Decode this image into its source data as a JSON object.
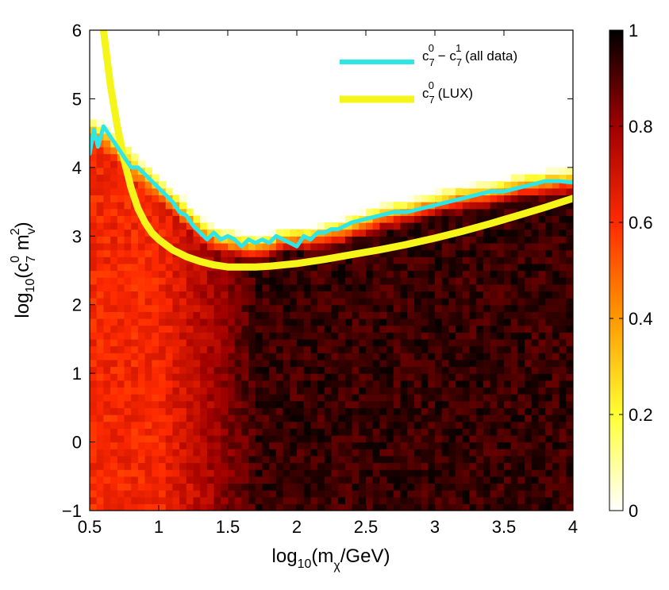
{
  "chart_data": {
    "type": "heatmap",
    "title": "",
    "xlabel": {
      "prefix": "log",
      "sub": "10",
      "open": "(m",
      "sub2": "χ",
      "close": "/GeV)"
    },
    "ylabel": {
      "prefix": "log",
      "sub": "10",
      "open": "(c",
      "sub2": "7",
      "sup2": "0",
      "mid": " m",
      "sub3": "v",
      "sup3": "2",
      "close": ")"
    },
    "xlim": [
      0.5,
      4
    ],
    "ylim": [
      -1,
      6
    ],
    "xticks": [
      0.5,
      1,
      1.5,
      2,
      2.5,
      3,
      3.5,
      4
    ],
    "xtick_labels": [
      "0.5",
      "1",
      "1.5",
      "2",
      "2.5",
      "3",
      "3.5",
      "4"
    ],
    "yticks": [
      -1,
      0,
      1,
      2,
      3,
      4,
      5,
      6
    ],
    "ytick_labels": [
      "−1",
      "0",
      "1",
      "2",
      "3",
      "4",
      "5",
      "6"
    ],
    "colorbar": {
      "range": [
        0,
        1
      ],
      "ticks": [
        0,
        0.2,
        0.4,
        0.6,
        0.8,
        1
      ],
      "tick_labels": [
        "0",
        "0.2",
        "0.4",
        "0.6",
        "0.8",
        "1"
      ],
      "colormap": "hot (reversed)"
    },
    "legend_position": "top-right",
    "heatmap_description": "Probability density shaded in reversed hot colormap; bright red (~0.6) at low mass, dark (~0.95) at high mass; white (0) above upper boundary.",
    "heatmap_upper_edge": {
      "x": [
        0.5,
        0.6,
        0.7,
        0.8,
        0.9,
        1.0,
        1.1,
        1.2,
        1.3,
        1.4,
        1.5,
        1.6,
        1.7,
        1.8,
        1.9,
        2.0,
        2.1,
        2.2,
        2.4,
        2.6,
        2.8,
        3.0,
        3.2,
        3.4,
        3.6,
        3.8,
        4.0
      ],
      "y": [
        4.7,
        4.6,
        4.4,
        4.2,
        4.0,
        3.85,
        3.65,
        3.45,
        3.25,
        3.1,
        3.05,
        3.0,
        2.95,
        3.0,
        3.1,
        3.1,
        3.1,
        3.15,
        3.25,
        3.4,
        3.5,
        3.6,
        3.7,
        3.75,
        3.85,
        3.9,
        3.95
      ]
    },
    "series": [
      {
        "name_base": "c",
        "name_sub1": "7",
        "name_sup1": "0",
        "name_mid": " − c",
        "name_sub2": "7",
        "name_sup2": "1",
        "name_tail": " (all data)",
        "color": "#2ee6e6",
        "x": [
          0.5,
          0.53,
          0.56,
          0.6,
          0.65,
          0.7,
          0.75,
          0.8,
          0.85,
          0.9,
          0.95,
          1.0,
          1.05,
          1.1,
          1.15,
          1.2,
          1.25,
          1.3,
          1.35,
          1.4,
          1.45,
          1.5,
          1.55,
          1.6,
          1.65,
          1.7,
          1.75,
          1.8,
          1.85,
          1.9,
          1.95,
          2.0,
          2.05,
          2.1,
          2.15,
          2.2,
          2.25,
          2.3,
          2.4,
          2.5,
          2.6,
          2.7,
          2.8,
          2.9,
          3.0,
          3.1,
          3.2,
          3.3,
          3.4,
          3.5,
          3.6,
          3.7,
          3.8,
          3.9,
          4.0
        ],
        "y": [
          4.2,
          4.55,
          4.3,
          4.6,
          4.45,
          4.3,
          4.15,
          4.0,
          4.0,
          3.9,
          3.8,
          3.7,
          3.6,
          3.5,
          3.35,
          3.3,
          3.15,
          3.05,
          2.95,
          3.05,
          2.95,
          3.0,
          2.95,
          2.85,
          2.95,
          2.9,
          2.95,
          2.9,
          3.0,
          2.95,
          2.9,
          2.85,
          3.0,
          2.95,
          3.05,
          3.05,
          3.1,
          3.1,
          3.2,
          3.25,
          3.3,
          3.35,
          3.35,
          3.4,
          3.45,
          3.5,
          3.55,
          3.6,
          3.65,
          3.65,
          3.7,
          3.75,
          3.8,
          3.8,
          3.78
        ]
      },
      {
        "name_base": "c",
        "name_sub1": "7",
        "name_sup1": "0",
        "name_tail": " (LUX)",
        "color": "#f5f51a",
        "x": [
          0.6,
          0.65,
          0.7,
          0.75,
          0.8,
          0.85,
          0.9,
          0.95,
          1.0,
          1.1,
          1.2,
          1.3,
          1.4,
          1.5,
          1.6,
          1.7,
          1.8,
          2.0,
          2.2,
          2.4,
          2.6,
          2.8,
          3.0,
          3.2,
          3.4,
          3.6,
          3.8,
          4.0
        ],
        "y": [
          6.0,
          5.2,
          4.6,
          4.1,
          3.7,
          3.4,
          3.2,
          3.05,
          2.95,
          2.8,
          2.7,
          2.63,
          2.58,
          2.55,
          2.55,
          2.55,
          2.56,
          2.6,
          2.66,
          2.73,
          2.8,
          2.88,
          2.97,
          3.07,
          3.18,
          3.3,
          3.42,
          3.55
        ]
      }
    ]
  }
}
